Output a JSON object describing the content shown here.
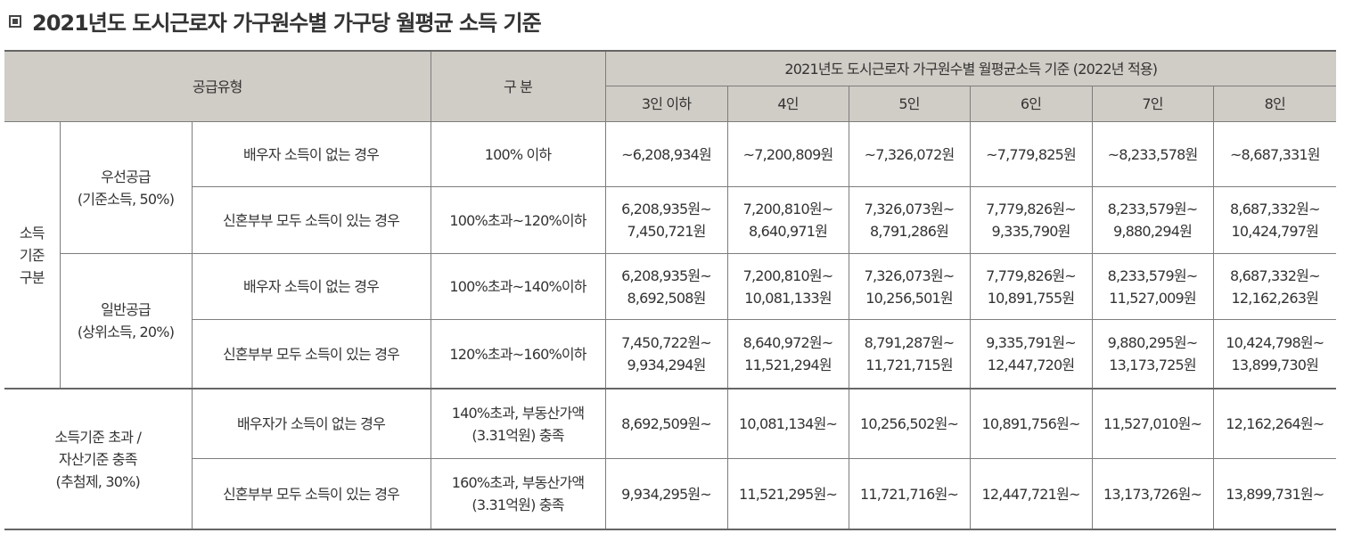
{
  "title": "2021년도 도시근로자 가구원수별 가구당 월평균 소득 기준",
  "header": {
    "supply_type": "공급유형",
    "category": "구 분",
    "group_title": "2021년도 도시근로자 가구원수별 월평균소득 기준 (2022년 적용)",
    "household_sizes": [
      "3인 이하",
      "4인",
      "5인",
      "6인",
      "7인",
      "8인"
    ]
  },
  "groups": {
    "income_criteria": [
      "소득",
      "기준",
      "구분"
    ],
    "priority": [
      "우선공급",
      "(기준소득, 50%)"
    ],
    "general": [
      "일반공급",
      "(상위소득, 20%)"
    ],
    "exceed": [
      "소득기준 초과 /",
      "자산기준 충족",
      "(추첨제, 30%)"
    ]
  },
  "rows": [
    {
      "condition": "배우자 소득이 없는 경우",
      "range": [
        "100% 이하"
      ],
      "values": [
        [
          "~6,208,934원"
        ],
        [
          "~7,200,809원"
        ],
        [
          "~7,326,072원"
        ],
        [
          "~7,779,825원"
        ],
        [
          "~8,233,578원"
        ],
        [
          "~8,687,331원"
        ]
      ]
    },
    {
      "condition": "신혼부부 모두 소득이 있는 경우",
      "range": [
        "100%초과~120%이하"
      ],
      "values": [
        [
          "6,208,935원~",
          "7,450,721원"
        ],
        [
          "7,200,810원~",
          "8,640,971원"
        ],
        [
          "7,326,073원~",
          "8,791,286원"
        ],
        [
          "7,779,826원~",
          "9,335,790원"
        ],
        [
          "8,233,579원~",
          "9,880,294원"
        ],
        [
          "8,687,332원~",
          "10,424,797원"
        ]
      ]
    },
    {
      "condition": "배우자 소득이 없는 경우",
      "range": [
        "100%초과~140%이하"
      ],
      "values": [
        [
          "6,208,935원~",
          "8,692,508원"
        ],
        [
          "7,200,810원~",
          "10,081,133원"
        ],
        [
          "7,326,073원~",
          "10,256,501원"
        ],
        [
          "7,779,826원~",
          "10,891,755원"
        ],
        [
          "8,233,579원~",
          "11,527,009원"
        ],
        [
          "8,687,332원~",
          "12,162,263원"
        ]
      ]
    },
    {
      "condition": "신혼부부 모두 소득이 있는 경우",
      "range": [
        "120%초과~160%이하"
      ],
      "values": [
        [
          "7,450,722원~",
          "9,934,294원"
        ],
        [
          "8,640,972원~",
          "11,521,294원"
        ],
        [
          "8,791,287원~",
          "11,721,715원"
        ],
        [
          "9,335,791원~",
          "12,447,720원"
        ],
        [
          "9,880,295원~",
          "13,173,725원"
        ],
        [
          "10,424,798원~",
          "13,899,730원"
        ]
      ]
    },
    {
      "condition": "배우자가 소득이 없는 경우",
      "range": [
        "140%초과, 부동산가액",
        "(3.31억원) 충족"
      ],
      "values": [
        [
          "8,692,509원~"
        ],
        [
          "10,081,134원~"
        ],
        [
          "10,256,502원~"
        ],
        [
          "10,891,756원~"
        ],
        [
          "11,527,010원~"
        ],
        [
          "12,162,264원~"
        ]
      ]
    },
    {
      "condition": "신혼부부 모두 소득이 있는 경우",
      "range": [
        "160%초과, 부동산가액",
        "(3.31억원) 충족"
      ],
      "values": [
        [
          "9,934,295원~"
        ],
        [
          "11,521,295원~"
        ],
        [
          "11,721,716원~"
        ],
        [
          "12,447,721원~"
        ],
        [
          "13,173,726원~"
        ],
        [
          "13,899,731원~"
        ]
      ]
    }
  ]
}
